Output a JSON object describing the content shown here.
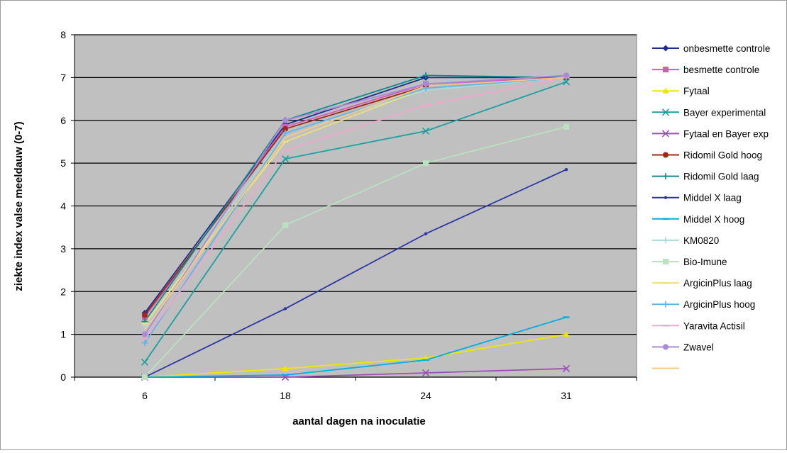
{
  "chart_data": {
    "type": "line",
    "title": "",
    "xlabel": "aantal dagen na inoculatie",
    "ylabel": "ziekte index valse meeldauw (0-7)",
    "categories": [
      "6",
      "18",
      "24",
      "31"
    ],
    "ylim": [
      0,
      8
    ],
    "yticks": [
      0,
      1,
      2,
      3,
      4,
      5,
      6,
      7,
      8
    ],
    "grid": true,
    "legend_position": "right",
    "plot_background": "#c0c0c0",
    "series": [
      {
        "name": "onbesmette controle",
        "color": "#1f2d8c",
        "marker": "diamond",
        "values": [
          1.5,
          5.9,
          7.0,
          7.0
        ]
      },
      {
        "name": "besmette controle",
        "color": "#d45bb8",
        "marker": "square",
        "values": [
          1.4,
          5.85,
          6.85,
          7.0
        ]
      },
      {
        "name": "Fytaal",
        "color": "#f2e600",
        "marker": "triangle",
        "values": [
          0.0,
          0.2,
          0.45,
          1.0
        ]
      },
      {
        "name": "Bayer experimental",
        "color": "#1aa0a0",
        "marker": "x",
        "values": [
          0.35,
          5.1,
          5.75,
          6.9
        ]
      },
      {
        "name": "Fytaal en Bayer exp",
        "color": "#9b4fb5",
        "marker": "x",
        "values": [
          0.0,
          0.0,
          0.1,
          0.2
        ]
      },
      {
        "name": "Ridomil Gold hoog",
        "color": "#9e2a16",
        "marker": "circle",
        "values": [
          1.45,
          5.8,
          6.8,
          7.0
        ]
      },
      {
        "name": "Ridomil Gold laag",
        "color": "#0e8a8a",
        "marker": "plus",
        "values": [
          1.3,
          6.0,
          7.05,
          7.0
        ]
      },
      {
        "name": "Middel X laag",
        "color": "#2b35a6",
        "marker": "dot",
        "values": [
          0.0,
          1.6,
          3.35,
          4.85
        ]
      },
      {
        "name": "Middel X hoog",
        "color": "#00aee0",
        "marker": "dash",
        "values": [
          0.0,
          0.05,
          0.4,
          1.4
        ]
      },
      {
        "name": "KM0820",
        "color": "#a9d9d9",
        "marker": "plus",
        "values": [
          1.2,
          5.7,
          6.7,
          7.0
        ]
      },
      {
        "name": "Bio-Imune",
        "color": "#b8e2c0",
        "marker": "square",
        "values": [
          0.0,
          3.55,
          5.0,
          5.85
        ]
      },
      {
        "name": "ArgicinPlus laag",
        "color": "#f0e078",
        "marker": "dash",
        "values": [
          1.25,
          5.5,
          6.75,
          7.0
        ]
      },
      {
        "name": "ArgicinPlus hoog",
        "color": "#5fb4ea",
        "marker": "plus",
        "values": [
          0.8,
          5.7,
          6.75,
          7.0
        ]
      },
      {
        "name": "Yaravita Actisil",
        "color": "#f2a6cc",
        "marker": "dash",
        "values": [
          0.9,
          5.3,
          6.35,
          7.0
        ]
      },
      {
        "name": "Zwavel",
        "color": "#a98ad8",
        "marker": "circle",
        "values": [
          1.0,
          6.0,
          6.85,
          7.05
        ]
      },
      {
        "name": "",
        "color": "#f7c78a",
        "marker": "none",
        "values": [
          1.1,
          5.6,
          6.8,
          7.0
        ]
      }
    ]
  }
}
